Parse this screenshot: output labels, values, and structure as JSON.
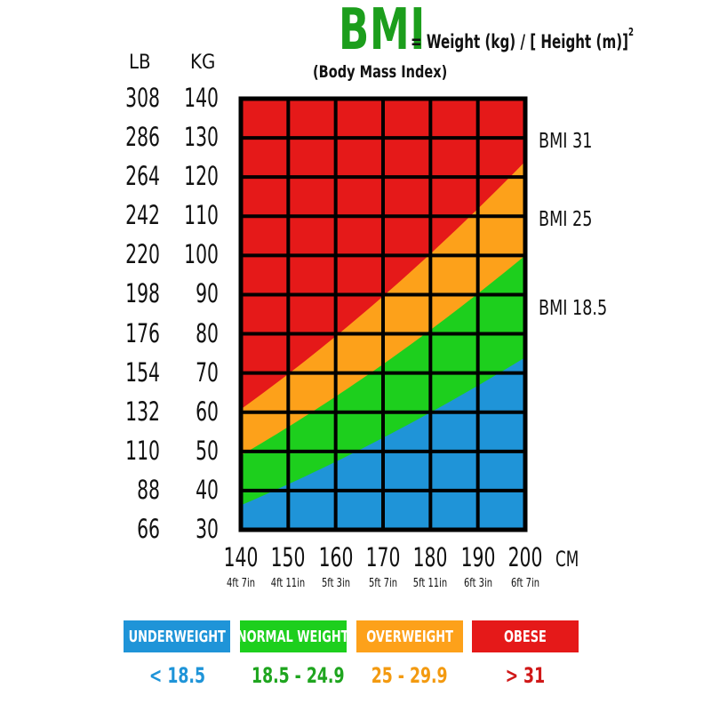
{
  "header": {
    "title": "BMI",
    "formula": "= Weight (kg) / [ Height (m)]",
    "formula_exponent": "2",
    "subtitle": "(Body Mass Index)"
  },
  "chart_data": {
    "type": "heatmap",
    "title": "BMI",
    "x_unit": "CM",
    "x_ticks": [
      "140",
      "150",
      "160",
      "170",
      "180",
      "190",
      "200"
    ],
    "x_sub_ticks": [
      "4ft 7in",
      "4ft 11in",
      "5ft 3in",
      "5ft 7in",
      "5ft 11in",
      "6ft 3in",
      "6ft 7in"
    ],
    "xlim": [
      140,
      200
    ],
    "y_headers": {
      "lb": "LB",
      "kg": "KG"
    },
    "y_ticks_kg": [
      "140",
      "130",
      "120",
      "110",
      "100",
      "90",
      "80",
      "70",
      "60",
      "50",
      "40",
      "30"
    ],
    "y_ticks_lb": [
      "308",
      "286",
      "264",
      "242",
      "220",
      "198",
      "176",
      "154",
      "132",
      "110",
      "88",
      "66"
    ],
    "ylim": [
      30,
      140
    ],
    "thresholds": [
      {
        "label": "BMI 31",
        "value": 31
      },
      {
        "label": "BMI 25",
        "value": 25
      },
      {
        "label": "BMI 18.5",
        "value": 18.5
      }
    ],
    "colors": {
      "underweight": "#1f94d8",
      "normal": "#1dcf1d",
      "overweight": "#fda11a",
      "obese": "#e51919",
      "grid": "#000000"
    }
  },
  "legend": [
    {
      "label": "UNDERWEIGHT",
      "range": "< 18.5",
      "color": "#1f94d8",
      "text_color": "#1f94d8"
    },
    {
      "label": "NORMAL WEIGHT",
      "range": "18.5 - 24.9",
      "color": "#1dcf1d",
      "text_color": "#1fa51f"
    },
    {
      "label": "OVERWEIGHT",
      "range": "25 - 29.9",
      "color": "#fda11a",
      "text_color": "#f39a10"
    },
    {
      "label": "OBESE",
      "range": "> 31",
      "color": "#e51919",
      "text_color": "#d01818"
    }
  ]
}
